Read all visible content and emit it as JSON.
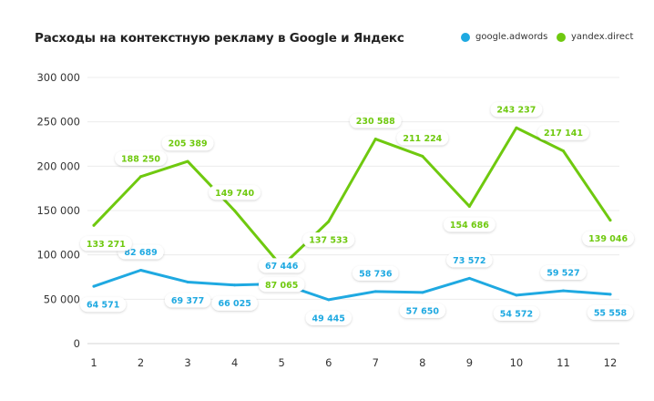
{
  "chart_data": {
    "type": "line",
    "title": "Расходы на контекстную рекламу в Google и Яндекс",
    "x": [
      1,
      2,
      3,
      4,
      5,
      6,
      7,
      8,
      9,
      10,
      11,
      12
    ],
    "x_tick_labels": [
      "1",
      "2",
      "3",
      "4",
      "5",
      "6",
      "7",
      "8",
      "9",
      "10",
      "11",
      "12"
    ],
    "ylim": [
      0,
      300000
    ],
    "y_tick_labels": [
      "0",
      "50 000",
      "100 000",
      "150 000",
      "200 000",
      "250 000",
      "300 000"
    ],
    "y_ticks": [
      0,
      50000,
      100000,
      150000,
      200000,
      250000,
      300000
    ],
    "grid": true,
    "legend_position": "top-right",
    "series": [
      {
        "name": "google.adwords",
        "color": "#1fa9e1",
        "values": [
          64571,
          82689,
          69377,
          66025,
          67446,
          49445,
          58736,
          57650,
          73572,
          54572,
          59527,
          55558
        ],
        "labels": [
          "64 571",
          "82 689",
          "69 377",
          "66 025",
          "67 446",
          "49 445",
          "58 736",
          "57 650",
          "73 572",
          "54 572",
          "59 527",
          "55 558"
        ]
      },
      {
        "name": "yandex.direct",
        "color": "#6fc90f",
        "values": [
          133271,
          188250,
          205389,
          149740,
          87065,
          137533,
          230588,
          211224,
          154686,
          243237,
          217141,
          139046
        ],
        "labels": [
          "133 271",
          "188 250",
          "205 389",
          "149 740",
          "87 065",
          "137 533",
          "230 588",
          "211 224",
          "154 686",
          "243 237",
          "217 141",
          "139 046"
        ]
      }
    ]
  }
}
